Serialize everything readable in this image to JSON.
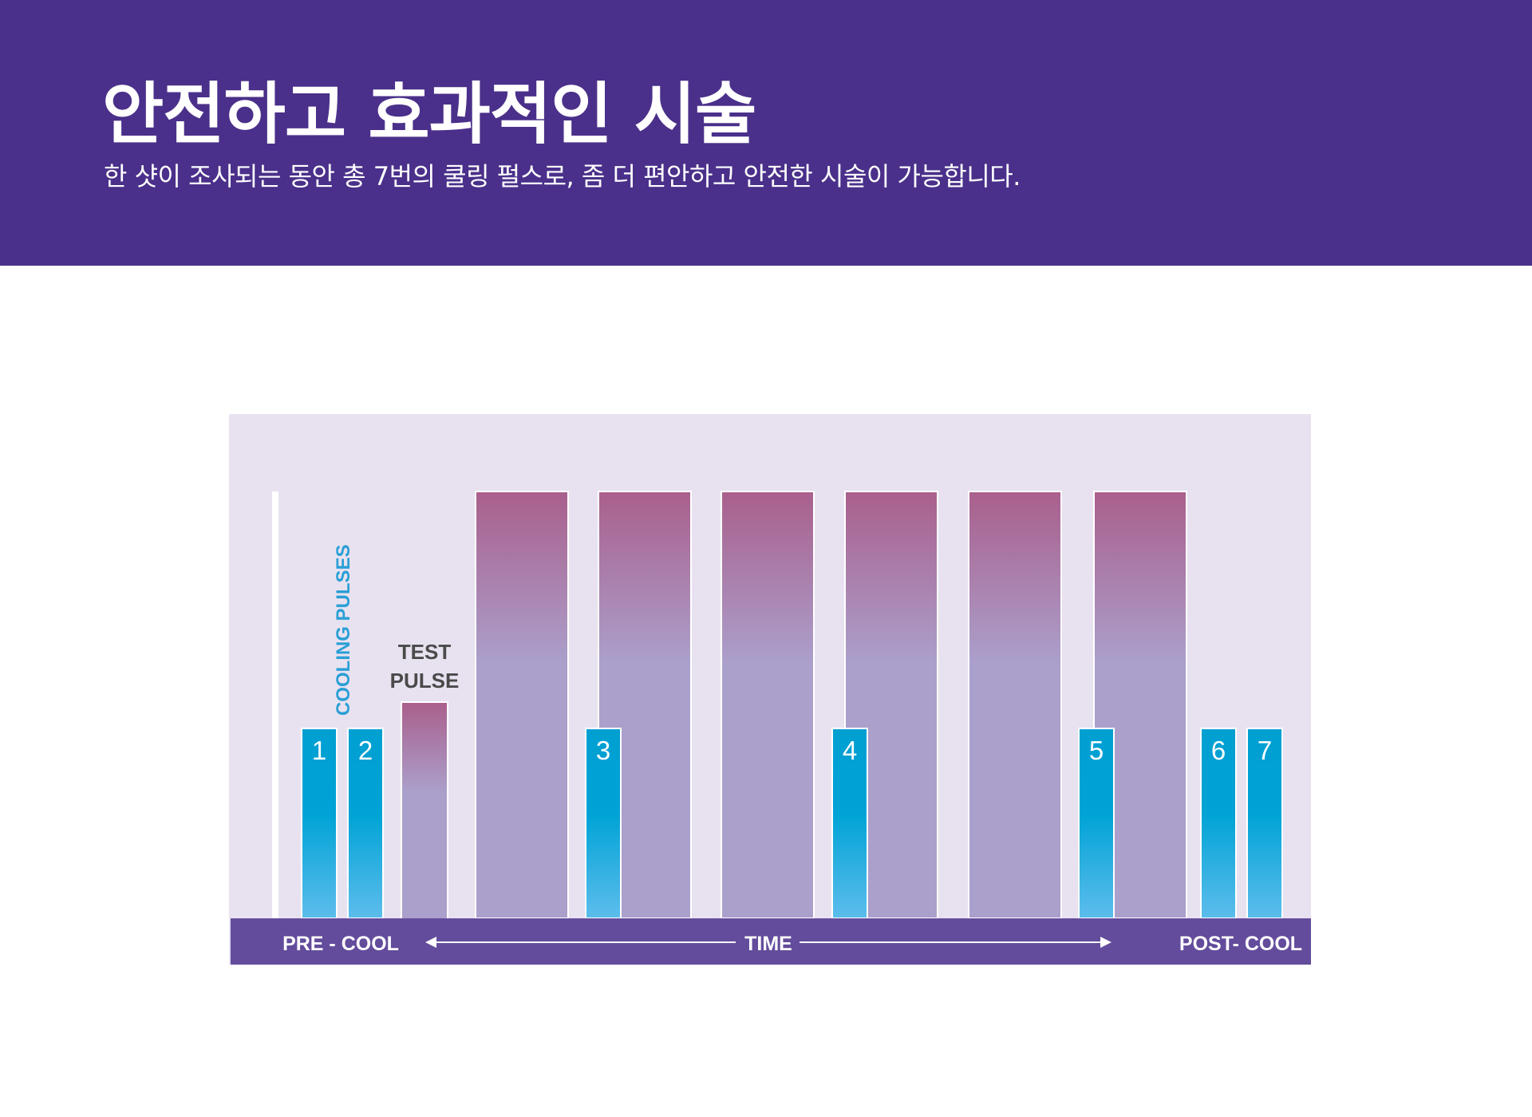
{
  "header": {
    "title": "안전하고 효과적인 시술",
    "subtitle": "한 샷이 조사되는 동안 총 7번의 쿨링 펄스로,  좀 더 편안하고 안전한 시술이 가능합니다."
  },
  "diagram": {
    "cooling_label": "COOLING PULSES",
    "test_label_line1": "TEST",
    "test_label_line2": "PULSE",
    "axis": {
      "pre": "PRE - COOL",
      "time": "TIME",
      "post": "POST- COOL"
    },
    "cooling_pulses": [
      "1",
      "2",
      "3",
      "4",
      "5",
      "6",
      "7"
    ]
  },
  "colors": {
    "header_bg": "#4a308a",
    "panel_bg": "#e8e2f0",
    "axis_bar": "#634c9c",
    "cooling_top": "#009fd2",
    "cooling_bottom": "#5dbdec",
    "pulse_top": "#aa5f8c",
    "pulse_bottom": "#ab9fcb",
    "cooling_label": "#2a9fd6"
  }
}
